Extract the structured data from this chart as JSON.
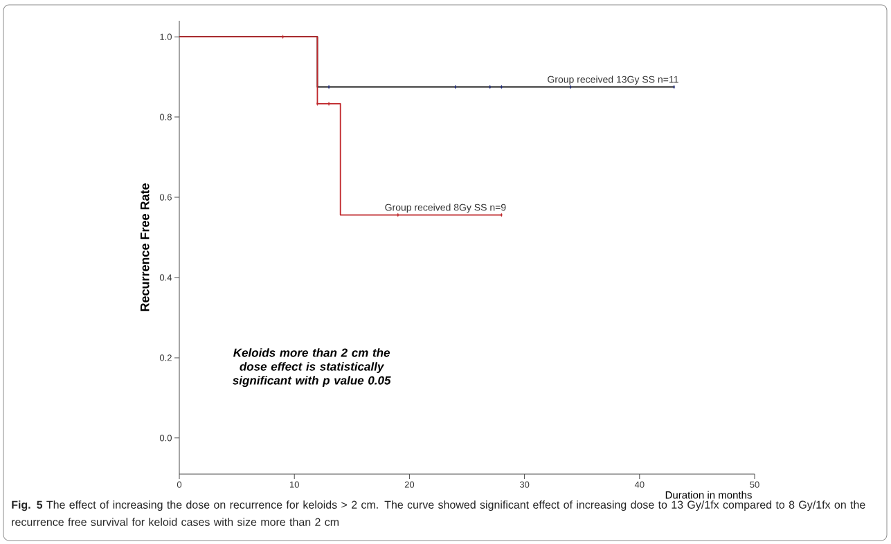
{
  "chart_data": {
    "type": "step",
    "xlabel": "Duration in months",
    "ylabel": "Recurrence Free Rate",
    "xlim": [
      0,
      50
    ],
    "ylim": [
      -0.09,
      1.04
    ],
    "xticks": [
      0,
      10,
      20,
      30,
      40,
      50
    ],
    "yticks": [
      {
        "value": 0,
        "label": "0.0"
      },
      {
        "value": 0.2,
        "label": "0.2"
      },
      {
        "value": 0.4,
        "label": "0.4"
      },
      {
        "value": 0.6,
        "label": "0.6"
      },
      {
        "value": 0.8,
        "label": "0.8"
      },
      {
        "value": 1,
        "label": "1.0"
      }
    ],
    "grid": false,
    "series": [
      {
        "name": "Group received 13Gy SS    n=11",
        "color": "#000000",
        "x": [
          0,
          12,
          43
        ],
        "values": [
          1,
          0.875,
          0.875
        ]
      },
      {
        "name": "Group received 8Gy SS    n=9",
        "color": "#c0282c",
        "x": [
          0,
          12,
          14,
          28
        ],
        "values": [
          1,
          0.833,
          0.556,
          0.556
        ]
      },
      {
        "type": "scatter",
        "marker": "diamond",
        "color": "#1f2a7a",
        "x": [
          13,
          24,
          27,
          28,
          34,
          43
        ],
        "values": [
          0.875,
          0.875,
          0.875,
          0.875,
          0.875,
          0.875
        ]
      },
      {
        "type": "scatter",
        "marker": "diamond",
        "color": "#c0282c",
        "x": [
          9,
          12,
          13,
          19,
          28
        ],
        "values": [
          1,
          0.833,
          0.833,
          0.556,
          0.556
        ]
      }
    ],
    "annotations": [
      "Keloids more than 2 cm the dose effect is statistically significant with p value 0.05",
      "**Fig. 5** The effect of increasing the dose on recurrence for keloids > 2 cm. The curve showed significant effect of increasing dose to 13 Gy/1fx compared to 8 Gy/1fx on the recurrence free survival for keloid cases with size more than 2 cm"
    ]
  }
}
